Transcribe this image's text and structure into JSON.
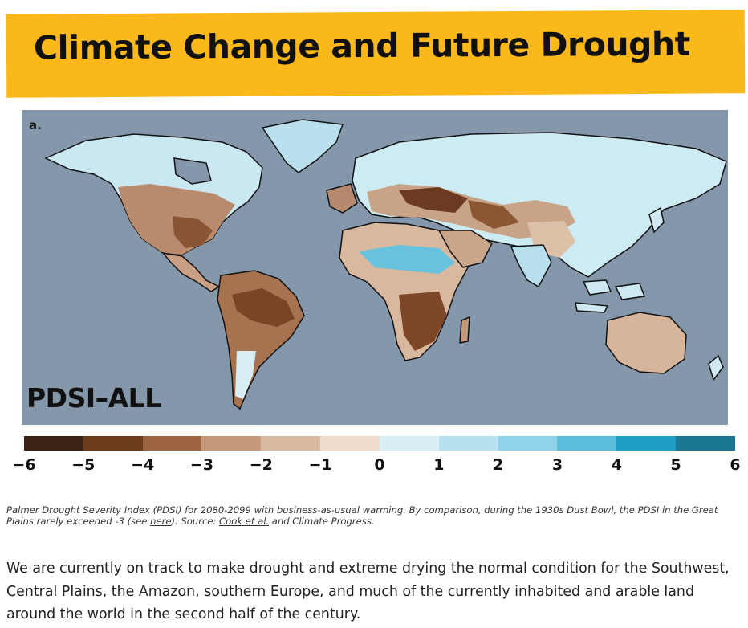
{
  "header": {
    "title": "Climate Change and Future Drought"
  },
  "map": {
    "panel_letter": "a.",
    "label": "PDSI–ALL",
    "ocean_color": "#8497ab"
  },
  "colorbar": {
    "colors": [
      "#3a2314",
      "#6e3a1c",
      "#9c6441",
      "#c49a7b",
      "#dab9a0",
      "#f0dccc",
      "#d9eff5",
      "#b6e2ef",
      "#8fd3e8",
      "#5bbfdb",
      "#1e9ec4",
      "#1b7895"
    ],
    "ticks": [
      "−6",
      "−5",
      "−4",
      "−3",
      "−2",
      "−1",
      "0",
      "1",
      "2",
      "3",
      "4",
      "5",
      "6"
    ]
  },
  "caption": {
    "text_1": "Palmer Drought Severity Index (PDSI) for 2080-2099 with business-as-usual warming. By comparison, during the 1930s Dust Bowl, the PDSI in the Great Plains rarely exceeded -3 (see ",
    "link_here": "here",
    "text_2": "). Source: ",
    "link_cook": "Cook et al.",
    "text_3": " and Climate Progress."
  },
  "body": {
    "paragraph": "We are currently on track to make drought and extreme drying the normal condition for the Southwest, Central Plains, the Amazon, southern Europe, and much of the currently inhabited and arable land around the world in the second half of the century."
  }
}
